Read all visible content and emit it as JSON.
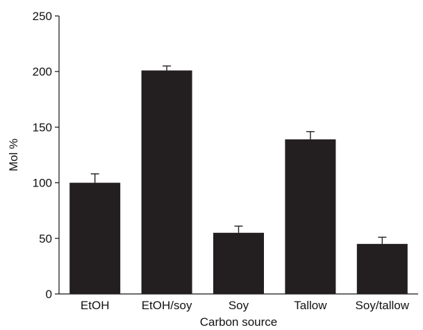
{
  "chart_data": {
    "type": "bar",
    "categories": [
      "EtOH",
      "EtOH/soy",
      "Soy",
      "Tallow",
      "Soy/tallow"
    ],
    "values": [
      100,
      201,
      55,
      139,
      45
    ],
    "errors": [
      8,
      4,
      6,
      7,
      6
    ],
    "xlabel": "Carbon source",
    "ylabel": "Mol %",
    "ylim": [
      0,
      250
    ],
    "yticks": [
      0,
      50,
      100,
      150,
      200,
      250
    ],
    "bar_color": "#231f20",
    "grid": false,
    "legend": "none"
  }
}
